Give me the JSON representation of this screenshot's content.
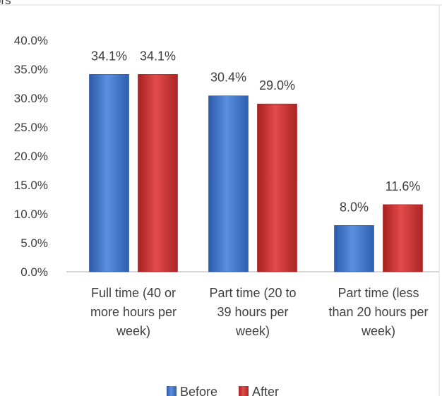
{
  "chart_data": {
    "type": "bar",
    "categories": [
      [
        "Full time (40 or",
        "more hours per",
        "week)"
      ],
      [
        "Part time (20 to",
        "39 hours per",
        "week)"
      ],
      [
        "Part time (less",
        "than 20 hours per",
        "week)"
      ]
    ],
    "series": [
      {
        "name": "Before",
        "values": [
          34.1,
          30.4,
          8.0
        ],
        "labels": [
          "34.1%",
          "30.4%",
          "8.0%"
        ],
        "color": "#4472C4"
      },
      {
        "name": "After",
        "values": [
          34.1,
          29.0,
          11.6
        ],
        "labels": [
          "34.1%",
          "29.0%",
          "11.6%"
        ],
        "color": "#C0393B"
      }
    ],
    "yticks": [
      "0.0%",
      "5.0%",
      "10.0%",
      "15.0%",
      "20.0%",
      "25.0%",
      "30.0%",
      "35.0%",
      "40.0%"
    ],
    "ylim": [
      0,
      40
    ],
    "grid": false,
    "legend": "bottom",
    "top_fragment": "ors"
  }
}
